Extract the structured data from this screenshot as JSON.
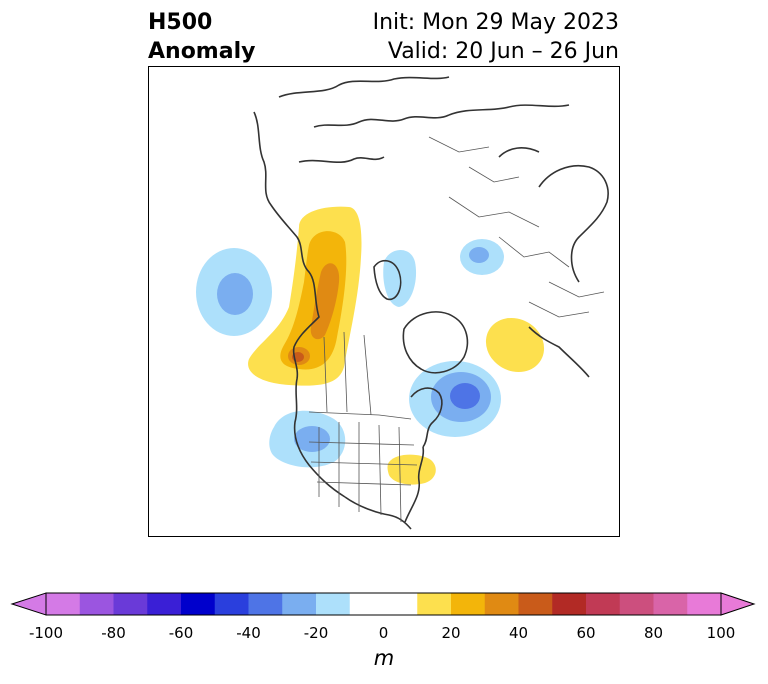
{
  "title": {
    "left_line1": "H500",
    "left_line2": "Anomaly",
    "right_line1": "Init: Mon 29 May 2023",
    "right_line2": "Valid: 20 Jun – 26 Jun"
  },
  "map": {
    "projection": "polar-stereographic (North America centered)",
    "anomaly_features": [
      {
        "name": "north-pacific-negative",
        "sign": "negative",
        "peak_m": -30
      },
      {
        "name": "western-canada-positive-ridge",
        "sign": "positive",
        "peak_m": 40
      },
      {
        "name": "pacific-northwest-positive-core",
        "sign": "positive",
        "peak_m": 50
      },
      {
        "name": "hudson-bay-area-negative",
        "sign": "negative",
        "peak_m": -20
      },
      {
        "name": "greenland-sea-positive",
        "sign": "positive",
        "peak_m": 20
      },
      {
        "name": "siberia-negative",
        "sign": "negative",
        "peak_m": -30
      },
      {
        "name": "labrador-newfoundland-negative",
        "sign": "negative",
        "peak_m": -50
      },
      {
        "name": "western-us-negative",
        "sign": "negative",
        "peak_m": -30
      },
      {
        "name": "ohio-valley-positive",
        "sign": "positive",
        "peak_m": 20
      }
    ]
  },
  "colorbar": {
    "unit": "m",
    "ticks": [
      "-100",
      "-80",
      "-60",
      "-40",
      "-20",
      "0",
      "20",
      "40",
      "60",
      "80",
      "100"
    ],
    "colors": [
      "#d47ae6",
      "#9b55e0",
      "#6a3ad8",
      "#3a1fd6",
      "#0000cc",
      "#2a3fdd",
      "#4e74e6",
      "#7aaef0",
      "#ade0fb",
      "#ffffff",
      "#ffffff",
      "#fde04e",
      "#f3b50a",
      "#e08a13",
      "#c95b1a",
      "#b22a25",
      "#c13a55",
      "#cc4f7e",
      "#d964a8",
      "#e87ad8"
    ],
    "extend_low_color": "#d47ae6",
    "extend_high_color": "#e87ad8"
  }
}
